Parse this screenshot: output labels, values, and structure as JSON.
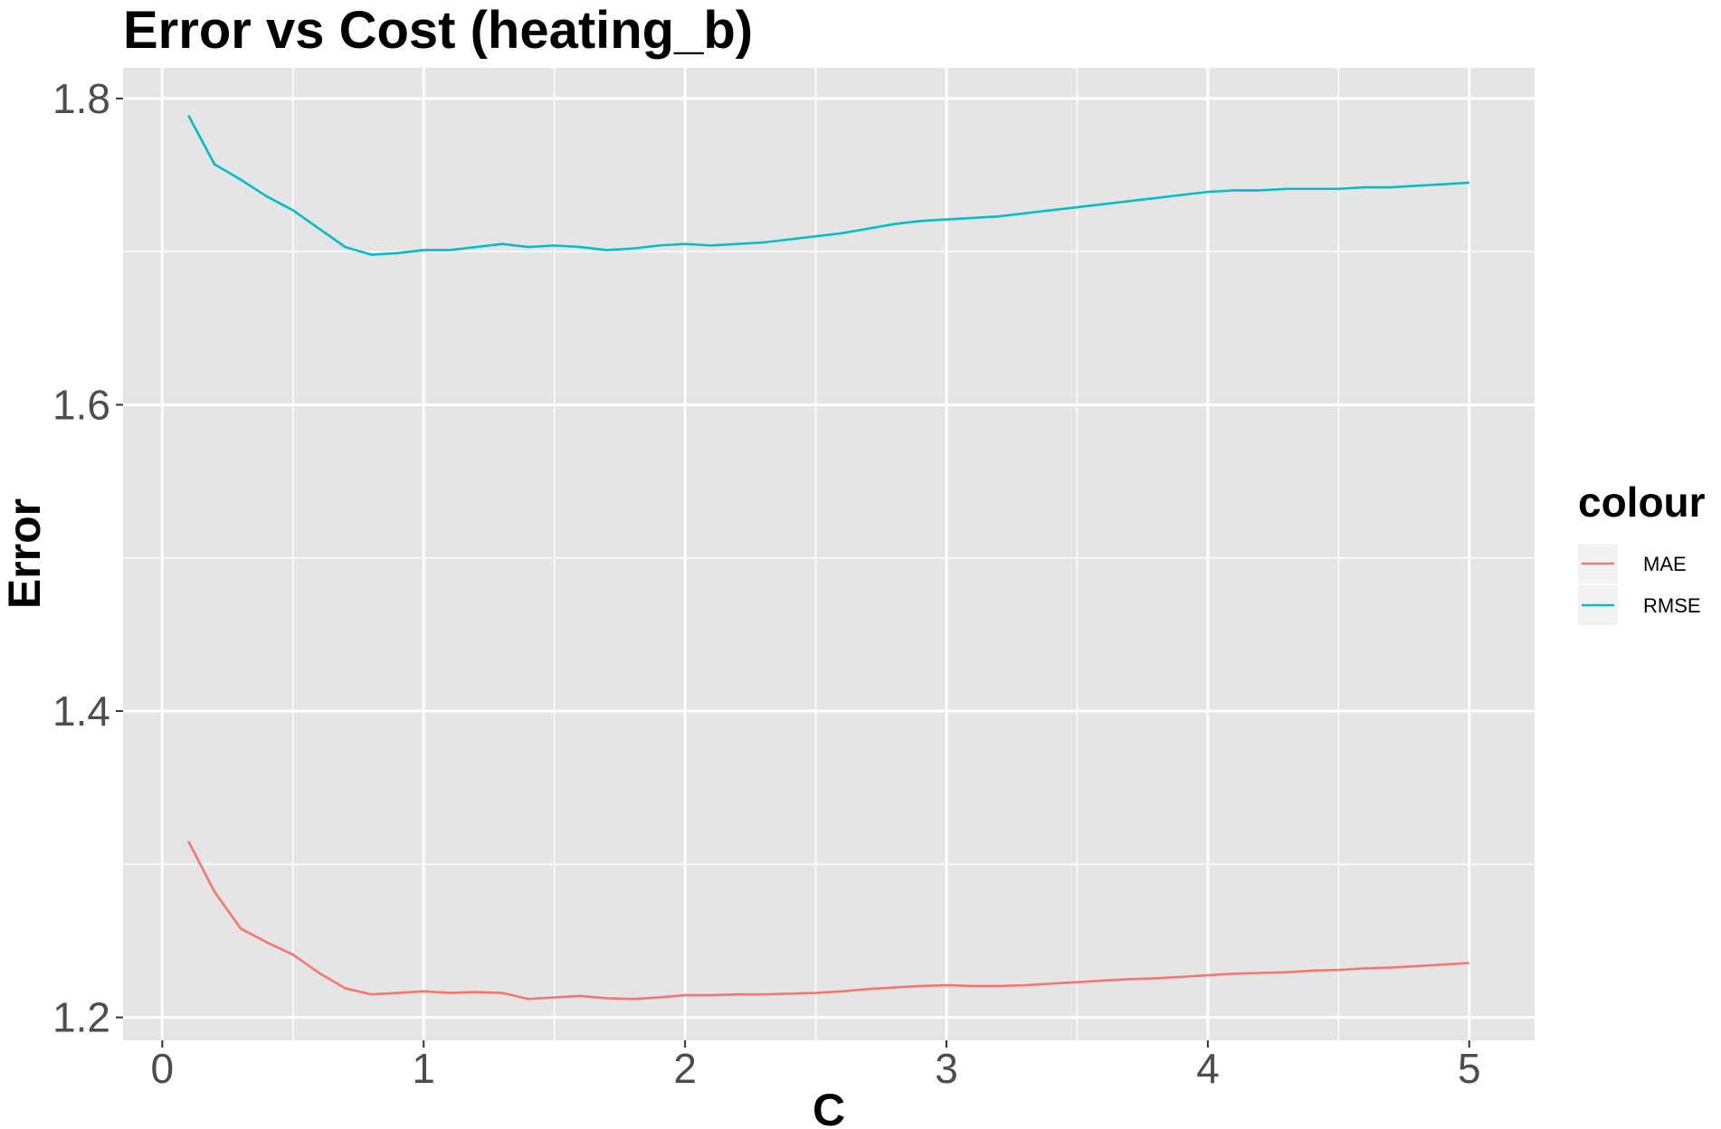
{
  "chart_data": {
    "type": "line",
    "title": "Error vs Cost (heating_b)",
    "xlabel": "C",
    "ylabel": "Error",
    "xlim": [
      -0.15,
      5.25
    ],
    "ylim": [
      1.185,
      1.82
    ],
    "x_ticks": [
      0,
      1,
      2,
      3,
      4,
      5
    ],
    "x_tick_labels": [
      "0",
      "1",
      "2",
      "3",
      "4",
      "5"
    ],
    "y_ticks": [
      1.2,
      1.4,
      1.6,
      1.8
    ],
    "y_tick_labels": [
      "1.2",
      "1.4",
      "1.6",
      "1.8"
    ],
    "grid": true,
    "background": "#e5e5e5",
    "legend": {
      "title": "colour",
      "position": "right"
    },
    "x": [
      0.1,
      0.2,
      0.3,
      0.4,
      0.5,
      0.6,
      0.7,
      0.8,
      0.9,
      1.0,
      1.1,
      1.2,
      1.3,
      1.4,
      1.5,
      1.6,
      1.7,
      1.8,
      1.9,
      2.0,
      2.1,
      2.2,
      2.3,
      2.4,
      2.5,
      2.6,
      2.7,
      2.8,
      2.9,
      3.0,
      3.1,
      3.2,
      3.3,
      3.4,
      3.5,
      3.6,
      3.7,
      3.8,
      3.9,
      4.0,
      4.1,
      4.2,
      4.3,
      4.4,
      4.5,
      4.6,
      4.7,
      4.8,
      4.9,
      5.0
    ],
    "series": [
      {
        "name": "MAE",
        "color": "#f8766d",
        "values": [
          1.315,
          1.282,
          1.258,
          1.249,
          1.241,
          1.229,
          1.219,
          1.215,
          1.216,
          1.217,
          1.216,
          1.2165,
          1.216,
          1.212,
          1.213,
          1.214,
          1.2125,
          1.212,
          1.213,
          1.2145,
          1.2145,
          1.215,
          1.215,
          1.2155,
          1.216,
          1.217,
          1.2185,
          1.2195,
          1.2205,
          1.221,
          1.2205,
          1.2205,
          1.221,
          1.222,
          1.223,
          1.224,
          1.225,
          1.2255,
          1.2265,
          1.2275,
          1.2285,
          1.229,
          1.2295,
          1.2305,
          1.231,
          1.232,
          1.2325,
          1.2335,
          1.2345,
          1.2355
        ]
      },
      {
        "name": "RMSE",
        "color": "#00bfc4",
        "values": [
          1.789,
          1.757,
          1.747,
          1.736,
          1.727,
          1.715,
          1.703,
          1.698,
          1.699,
          1.701,
          1.701,
          1.703,
          1.705,
          1.703,
          1.704,
          1.703,
          1.701,
          1.702,
          1.704,
          1.705,
          1.704,
          1.705,
          1.706,
          1.708,
          1.71,
          1.712,
          1.715,
          1.718,
          1.72,
          1.721,
          1.722,
          1.723,
          1.725,
          1.727,
          1.729,
          1.731,
          1.733,
          1.735,
          1.737,
          1.739,
          1.74,
          1.74,
          1.741,
          1.741,
          1.741,
          1.742,
          1.742,
          1.743,
          1.744,
          1.745
        ]
      }
    ]
  }
}
